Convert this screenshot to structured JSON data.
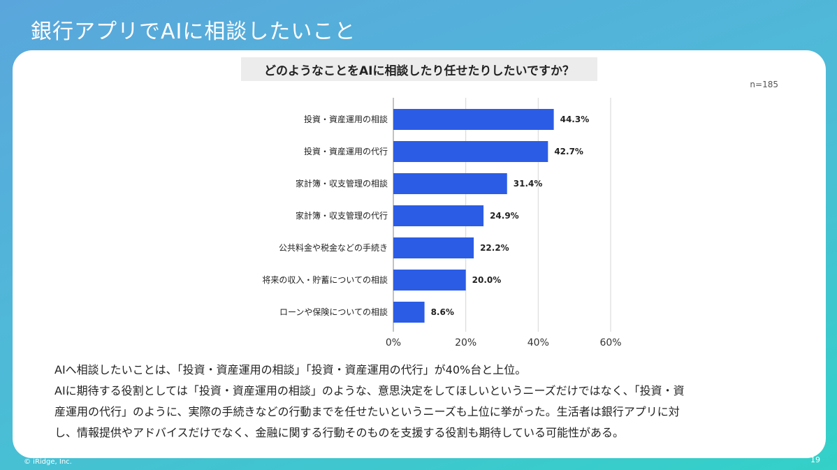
{
  "slide": {
    "title": "銀行アプリでAIに相談したいこと",
    "question": "どのようなことをAIに相談したり任せたりしたいですか？",
    "sample_size": "n=185",
    "body_lines": [
      "AIへ相談したいことは、「投資・資産運用の相談」「投資・資産運用の代行」が40%台と上位。",
      "AIに期待する役割としては「投資・資産運用の相談」のような、意思決定をしてほしいというニーズだけではなく、「投資・資",
      "産運用の代行」のように、実際の手続きなどの行動までを任せたいというニーズも上位に挙がった。生活者は銀行アプリに対",
      "し、情報提供やアドバイスだけでなく、金融に関する行動そのものを支援する役割も期待している可能性がある。"
    ],
    "copyright": "© iRidge, Inc.",
    "page_number": "19"
  },
  "chart_data": {
    "type": "bar",
    "orientation": "horizontal",
    "categories": [
      "投資・資産運用の相談",
      "投資・資産運用の代行",
      "家計簿・収支管理の相談",
      "家計簿・収支管理の代行",
      "公共料金や税金などの手続き",
      "将来の収入・貯蓄についての相談",
      "ローンや保険についての相談"
    ],
    "values": [
      44.3,
      42.7,
      31.4,
      24.9,
      22.2,
      20.0,
      8.6
    ],
    "value_labels": [
      "44.3%",
      "42.7%",
      "31.4%",
      "24.9%",
      "22.2%",
      "20.0%",
      "8.6%"
    ],
    "xlim": [
      0,
      60
    ],
    "x_ticks": [
      0,
      20,
      40,
      60
    ],
    "x_tick_labels": [
      "0%",
      "20%",
      "40%",
      "60%"
    ],
    "grid": true,
    "bar_color": "#2b5ce6"
  }
}
